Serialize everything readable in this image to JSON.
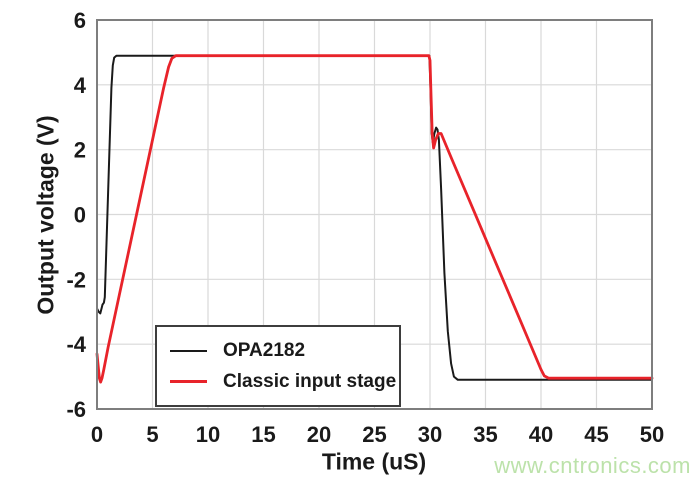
{
  "chart_data": {
    "type": "line",
    "title": "",
    "xlabel": "Time (uS)",
    "ylabel": "Output voltage (V)",
    "xlim": [
      0,
      50
    ],
    "ylim": [
      -6,
      6
    ],
    "xticks": [
      0,
      5,
      10,
      15,
      20,
      25,
      30,
      35,
      40,
      45,
      50
    ],
    "yticks": [
      -6,
      -4,
      -2,
      0,
      2,
      4,
      6
    ],
    "grid": true,
    "legend_position": "lower-left-inside",
    "series": [
      {
        "name": "OPA2182",
        "color": "#1a1a1a",
        "width": 2,
        "points": [
          [
            0,
            -2.9
          ],
          [
            0.15,
            -3.0
          ],
          [
            0.3,
            -3.05
          ],
          [
            0.42,
            -2.88
          ],
          [
            0.5,
            -2.78
          ],
          [
            0.62,
            -2.72
          ],
          [
            0.7,
            -2.55
          ],
          [
            1.3,
            3.9
          ],
          [
            1.42,
            4.6
          ],
          [
            1.55,
            4.84
          ],
          [
            1.75,
            4.9
          ],
          [
            29.95,
            4.9
          ],
          [
            30.05,
            3.8
          ],
          [
            30.15,
            2.5
          ],
          [
            30.25,
            2.22
          ],
          [
            30.4,
            2.5
          ],
          [
            30.55,
            2.68
          ],
          [
            30.68,
            2.62
          ],
          [
            30.8,
            2.3
          ],
          [
            31.0,
            0.8
          ],
          [
            31.3,
            -1.8
          ],
          [
            31.6,
            -3.6
          ],
          [
            31.9,
            -4.6
          ],
          [
            32.15,
            -5.0
          ],
          [
            32.5,
            -5.1
          ],
          [
            50,
            -5.1
          ]
        ]
      },
      {
        "name": "Classic input stage",
        "color": "#e8232a",
        "width": 2.8,
        "points": [
          [
            0,
            -4.3
          ],
          [
            0.1,
            -4.65
          ],
          [
            0.22,
            -5.05
          ],
          [
            0.32,
            -5.17
          ],
          [
            0.45,
            -5.05
          ],
          [
            0.6,
            -4.8
          ],
          [
            1,
            -4.1
          ],
          [
            2,
            -2.5
          ],
          [
            3,
            -0.9
          ],
          [
            4,
            0.7
          ],
          [
            5,
            2.3
          ],
          [
            6,
            3.9
          ],
          [
            6.45,
            4.55
          ],
          [
            6.75,
            4.82
          ],
          [
            7.1,
            4.9
          ],
          [
            29.9,
            4.9
          ],
          [
            30.0,
            4.75
          ],
          [
            30.1,
            3.6
          ],
          [
            30.2,
            2.5
          ],
          [
            30.32,
            2.05
          ],
          [
            30.5,
            2.3
          ],
          [
            30.75,
            2.5
          ],
          [
            31.0,
            2.5
          ],
          [
            32,
            1.68
          ],
          [
            34,
            0.07
          ],
          [
            36,
            -1.55
          ],
          [
            38,
            -3.16
          ],
          [
            40,
            -4.78
          ],
          [
            40.3,
            -4.98
          ],
          [
            40.7,
            -5.05
          ],
          [
            50,
            -5.05
          ]
        ]
      }
    ]
  },
  "axes": {
    "x_label": "Time (uS)",
    "y_label": "Output voltage (V)"
  },
  "legend": {
    "items": [
      {
        "label": "OPA2182",
        "color": "#1a1a1a",
        "line_thickness": 2
      },
      {
        "label": "Classic input stage",
        "color": "#e8232a",
        "line_thickness": 3
      }
    ]
  },
  "watermark": {
    "text": "www.cntronics.com",
    "color": "#bce2aa"
  },
  "style_colors": {
    "frame": "#7e7e7e",
    "grid": "#d9d9d9",
    "tick_text": "#1a1a1a",
    "background": "#ffffff"
  }
}
